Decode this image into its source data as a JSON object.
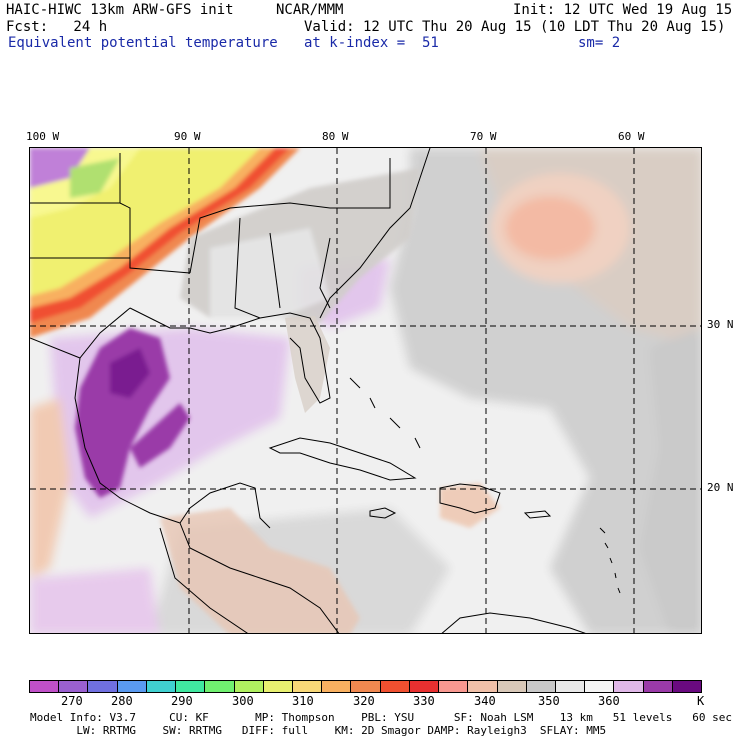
{
  "header": {
    "model": "HAIC-HIWC 13km ARW-GFS init",
    "org": "NCAR/MMM",
    "init": "Init: 12 UTC Wed 19 Aug 15",
    "fcst": "Fcst:   24 h",
    "valid": "Valid: 12 UTC Thu 20 Aug 15 (10 LDT Thu 20 Aug 15)",
    "field": "Equivalent potential temperature",
    "level": "at k-index =  51",
    "smooth": "sm= 2"
  },
  "axes": {
    "lon_labels": [
      "100 W",
      "90 W",
      "80 W",
      "70 W",
      "60 W"
    ],
    "lat_labels": [
      "30 N",
      "20 N"
    ]
  },
  "colorbar": {
    "colors": [
      "#c050c8",
      "#9a60d0",
      "#7070e0",
      "#5a9af0",
      "#40d0d0",
      "#40e8a0",
      "#70f070",
      "#b0f060",
      "#e8f070",
      "#f8d878",
      "#f8b060",
      "#f08850",
      "#f05030",
      "#e83030",
      "#f89890",
      "#f0c0a8",
      "#d8c8b8",
      "#c8c8c8",
      "#e8e8e8",
      "#f4f4f4",
      "#e0b8e8",
      "#9a3aa8",
      "#6a0a80"
    ],
    "ticks": [
      "270",
      "280",
      "290",
      "300",
      "310",
      "320",
      "330",
      "340",
      "350",
      "360"
    ],
    "unit": "K"
  },
  "footer": {
    "line1": "Model Info: V3.7     CU: KF       MP: Thompson    PBL: YSU      SF: Noah LSM    13 km   51 levels   60 sec",
    "line2": "       LW: RRTMG    SW: RRTMG   DIFF: full    KM: 2D Smagor DAMP: Rayleigh3  SFLAY: MM5"
  }
}
